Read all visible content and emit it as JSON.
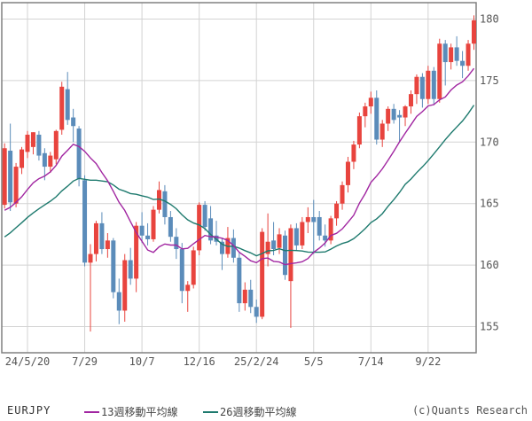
{
  "chart_data": {
    "type": "candlestick",
    "instrument": "EURJPY",
    "interval": "weekly",
    "copyright": "(c)Quants Research",
    "legend": [
      {
        "label": "13週移動平均線",
        "period": 13,
        "color": "#a126a1"
      },
      {
        "label": "26週移動平均線",
        "period": 26,
        "color": "#1e7a6e"
      }
    ],
    "legend_position": "bottom",
    "grid": true,
    "y_axis": {
      "side": "right",
      "ticks": [
        155,
        160,
        165,
        170,
        175,
        180
      ],
      "ylim": [
        152.9,
        181.3
      ]
    },
    "x_axis": {
      "tick_labels": [
        "24/5/20",
        "7/29",
        "10/7",
        "12/16",
        "25/2/24",
        "5/5",
        "7/14",
        "9/22"
      ],
      "tick_week_indices": [
        4,
        14,
        24,
        34,
        44,
        54,
        64,
        74
      ],
      "start_week": "2024-04-22",
      "weeks_total": 83
    },
    "colors": {
      "up": "#e8443e",
      "down": "#5b8cba",
      "grid": "#d3d3d3",
      "border": "#808080",
      "label_text": "#555555",
      "background": "#ffffff"
    },
    "candles_ohlc": [
      [
        164.9,
        169.9,
        164.6,
        169.5
      ],
      [
        169.3,
        171.5,
        164.4,
        165.1
      ],
      [
        165.0,
        168.3,
        164.7,
        168.0
      ],
      [
        167.9,
        169.6,
        167.4,
        169.4
      ],
      [
        169.2,
        170.9,
        168.7,
        170.6
      ],
      [
        169.6,
        170.8,
        169.0,
        170.8
      ],
      [
        170.6,
        170.9,
        168.5,
        168.9
      ],
      [
        169.1,
        169.5,
        166.9,
        168.0
      ],
      [
        168.0,
        169.2,
        167.5,
        168.9
      ],
      [
        168.6,
        171.0,
        168.2,
        170.9
      ],
      [
        171.0,
        174.9,
        170.6,
        174.5
      ],
      [
        174.3,
        175.7,
        171.4,
        171.8
      ],
      [
        172.0,
        172.7,
        170.0,
        171.3
      ],
      [
        171.1,
        171.3,
        166.4,
        167.0
      ],
      [
        166.9,
        167.3,
        159.9,
        160.2
      ],
      [
        160.2,
        161.7,
        154.6,
        160.9
      ],
      [
        160.9,
        163.6,
        160.3,
        163.4
      ],
      [
        163.4,
        164.3,
        160.9,
        161.3
      ],
      [
        161.3,
        162.6,
        160.6,
        162.0
      ],
      [
        162.0,
        162.2,
        157.3,
        157.8
      ],
      [
        157.8,
        158.9,
        155.2,
        156.3
      ],
      [
        156.3,
        160.9,
        155.4,
        160.4
      ],
      [
        160.4,
        161.4,
        158.4,
        158.9
      ],
      [
        158.9,
        163.5,
        157.8,
        163.2
      ],
      [
        163.2,
        164.3,
        161.8,
        162.4
      ],
      [
        162.4,
        163.4,
        161.6,
        162.1
      ],
      [
        162.1,
        164.8,
        161.9,
        164.5
      ],
      [
        164.5,
        166.8,
        164.2,
        166.1
      ],
      [
        166.0,
        166.5,
        163.3,
        163.9
      ],
      [
        163.9,
        164.4,
        161.9,
        162.3
      ],
      [
        162.3,
        163.0,
        160.5,
        161.3
      ],
      [
        161.3,
        161.8,
        156.9,
        157.9
      ],
      [
        157.9,
        158.7,
        156.2,
        158.4
      ],
      [
        158.4,
        161.5,
        158.1,
        161.2
      ],
      [
        161.2,
        165.1,
        160.8,
        164.9
      ],
      [
        164.9,
        165.2,
        162.8,
        163.1
      ],
      [
        163.8,
        164.8,
        161.7,
        162.0
      ],
      [
        162.4,
        163.6,
        161.6,
        161.9
      ],
      [
        161.9,
        162.2,
        159.6,
        160.9
      ],
      [
        160.9,
        163.1,
        160.6,
        162.2
      ],
      [
        162.2,
        162.9,
        160.2,
        160.6
      ],
      [
        160.6,
        161.0,
        156.2,
        156.9
      ],
      [
        156.9,
        158.6,
        156.3,
        158.0
      ],
      [
        158.0,
        158.8,
        156.1,
        156.6
      ],
      [
        156.6,
        157.2,
        155.3,
        155.8
      ],
      [
        155.8,
        163.0,
        155.6,
        162.7
      ],
      [
        160.9,
        164.2,
        159.9,
        161.9
      ],
      [
        162.0,
        163.5,
        160.8,
        161.3
      ],
      [
        161.4,
        163.0,
        160.9,
        162.5
      ],
      [
        162.4,
        162.8,
        158.8,
        159.2
      ],
      [
        158.7,
        163.3,
        154.9,
        163.0
      ],
      [
        163.0,
        163.4,
        161.2,
        161.6
      ],
      [
        161.6,
        163.9,
        161.3,
        163.5
      ],
      [
        163.5,
        164.7,
        162.6,
        163.9
      ],
      [
        163.9,
        165.3,
        160.9,
        163.5
      ],
      [
        163.9,
        164.4,
        162.0,
        162.4
      ],
      [
        162.4,
        163.3,
        161.5,
        162.0
      ],
      [
        162.0,
        164.0,
        161.7,
        163.8
      ],
      [
        163.8,
        165.2,
        163.2,
        165.0
      ],
      [
        165.0,
        166.8,
        164.5,
        166.5
      ],
      [
        166.5,
        168.8,
        165.9,
        168.4
      ],
      [
        168.4,
        170.1,
        167.8,
        169.8
      ],
      [
        169.8,
        172.4,
        169.5,
        172.1
      ],
      [
        172.1,
        173.2,
        171.2,
        172.9
      ],
      [
        172.9,
        174.1,
        172.3,
        173.6
      ],
      [
        173.6,
        174.2,
        169.8,
        170.2
      ],
      [
        170.2,
        171.8,
        169.6,
        171.5
      ],
      [
        171.5,
        172.9,
        170.9,
        172.7
      ],
      [
        172.7,
        173.1,
        171.5,
        171.8
      ],
      [
        172.2,
        172.6,
        170.0,
        172.0
      ],
      [
        172.0,
        173.0,
        171.3,
        172.9
      ],
      [
        172.9,
        174.2,
        172.3,
        173.9
      ],
      [
        173.9,
        175.5,
        173.1,
        175.3
      ],
      [
        175.3,
        175.6,
        172.8,
        173.5
      ],
      [
        173.5,
        176.2,
        173.1,
        175.8
      ],
      [
        175.8,
        176.1,
        173.0,
        173.5
      ],
      [
        173.5,
        178.4,
        173.2,
        178.0
      ],
      [
        178.0,
        178.3,
        174.6,
        176.5
      ],
      [
        176.5,
        178.0,
        175.9,
        177.7
      ],
      [
        177.7,
        178.6,
        176.2,
        176.6
      ],
      [
        176.6,
        177.4,
        175.2,
        176.2
      ],
      [
        176.2,
        178.3,
        175.8,
        178.0
      ],
      [
        178.0,
        180.3,
        177.5,
        179.9
      ]
    ],
    "ma_seed_closes_prior_weeks": [
      156.5,
      157.2,
      158.8,
      159.5,
      161.2,
      160.3,
      159.8,
      160.9,
      161.5,
      162.2,
      161.8,
      160.6,
      161.3,
      162.0,
      162.8,
      163.5,
      162.9,
      163.8,
      164.5,
      165.2,
      164.6,
      163.9,
      164.8,
      165.6,
      164.9
    ]
  }
}
